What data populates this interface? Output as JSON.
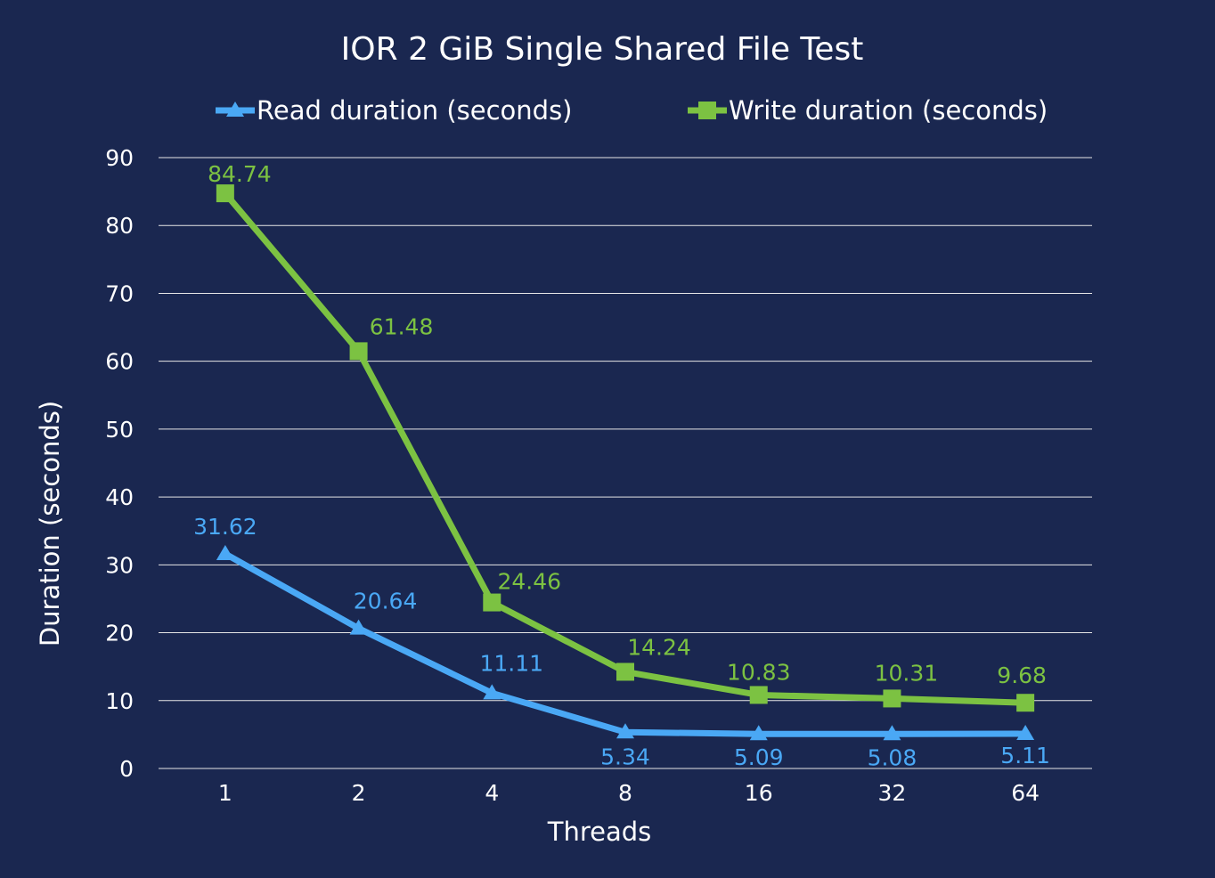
{
  "chart_data": {
    "type": "line",
    "title": "IOR 2 GiB Single Shared File Test",
    "xlabel": "Threads",
    "ylabel": "Duration (seconds)",
    "categories": [
      "1",
      "2",
      "4",
      "8",
      "16",
      "32",
      "64"
    ],
    "ylim": [
      0,
      90
    ],
    "yticks": [
      "0",
      "10",
      "20",
      "30",
      "40",
      "50",
      "60",
      "70",
      "80",
      "90"
    ],
    "ytick_values": [
      0,
      10,
      20,
      30,
      40,
      50,
      60,
      70,
      80,
      90
    ],
    "grid": true,
    "legend_position": "top",
    "background_color": "#1a2750",
    "series": [
      {
        "name": "Read duration (seconds)",
        "color": "#4aa8f5",
        "marker": "triangle",
        "values": [
          31.62,
          20.64,
          11.11,
          5.34,
          5.09,
          5.08,
          5.11
        ],
        "labels": [
          "31.62",
          "20.64",
          "11.11",
          "5.34",
          "5.09",
          "5.08",
          "5.11"
        ]
      },
      {
        "name": "Write duration (seconds)",
        "color": "#7cc242",
        "marker": "square",
        "values": [
          84.74,
          61.48,
          24.46,
          14.24,
          10.83,
          10.31,
          9.68
        ],
        "labels": [
          "84.74",
          "61.48",
          "24.46",
          "14.24",
          "10.83",
          "10.31",
          "9.68"
        ]
      }
    ]
  }
}
